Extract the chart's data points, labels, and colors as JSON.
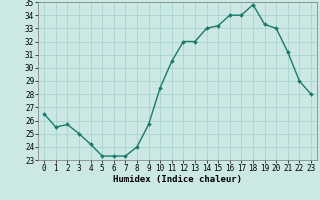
{
  "x": [
    0,
    1,
    2,
    3,
    4,
    5,
    6,
    7,
    8,
    9,
    10,
    11,
    12,
    13,
    14,
    15,
    16,
    17,
    18,
    19,
    20,
    21,
    22,
    23
  ],
  "y": [
    26.5,
    25.5,
    25.7,
    25.0,
    24.2,
    23.3,
    23.3,
    23.3,
    24.0,
    25.7,
    28.5,
    30.5,
    32.0,
    32.0,
    33.0,
    33.2,
    34.0,
    34.0,
    34.8,
    33.3,
    33.0,
    31.2,
    29.0,
    28.0
  ],
  "line_color": "#1a7a6e",
  "marker": "D",
  "marker_size": 2.0,
  "bg_color": "#cce8e4",
  "grid_color": "#aad4ce",
  "xlabel": "Humidex (Indice chaleur)",
  "ylim": [
    23,
    35
  ],
  "xlim": [
    -0.5,
    23.5
  ],
  "yticks": [
    23,
    24,
    25,
    26,
    27,
    28,
    29,
    30,
    31,
    32,
    33,
    34,
    35
  ],
  "xticks": [
    0,
    1,
    2,
    3,
    4,
    5,
    6,
    7,
    8,
    9,
    10,
    11,
    12,
    13,
    14,
    15,
    16,
    17,
    18,
    19,
    20,
    21,
    22,
    23
  ],
  "tick_fontsize": 5.5,
  "xlabel_fontsize": 6.5,
  "line_width": 1.0
}
